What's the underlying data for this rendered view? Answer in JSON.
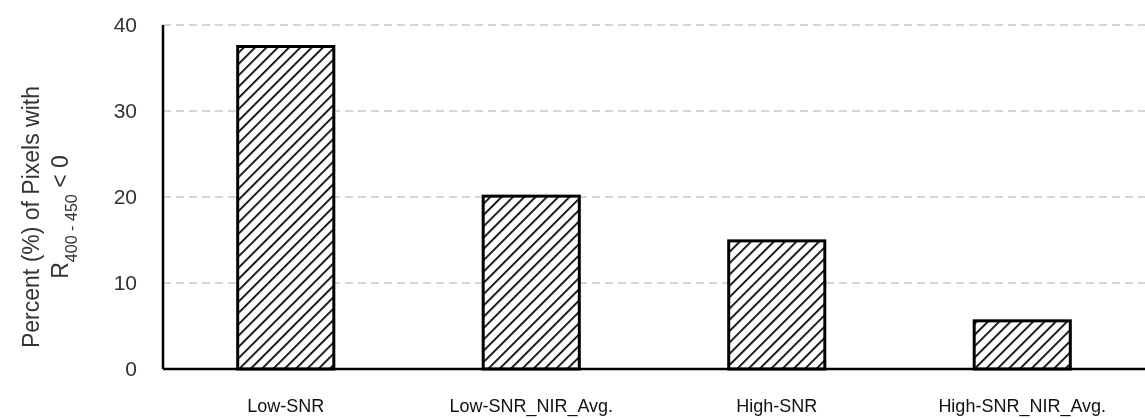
{
  "chart_data": {
    "type": "bar",
    "ylabel": "Percent (%) of Pixels with\nR$_{400 - 450}$ < 0",
    "categories": [
      "Low-SNR",
      "Low-SNR_NIR_Avg.",
      "High-SNR",
      "High-SNR_NIR_Avg."
    ],
    "values": [
      37.5,
      20.1,
      14.9,
      5.6
    ],
    "color": "#000000",
    "ylim": [
      0,
      40
    ],
    "yticks": [
      0,
      10,
      20,
      30,
      40
    ],
    "grid": "y"
  }
}
